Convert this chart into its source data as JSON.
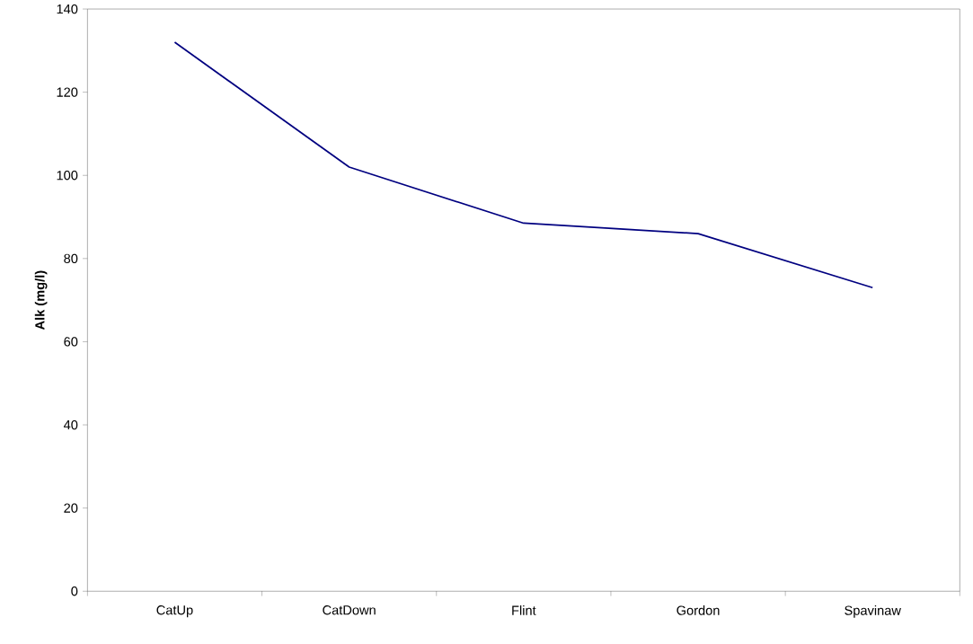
{
  "chart_data": {
    "type": "line",
    "ylabel": "Alk (mg/l)",
    "categories": [
      "CatUp",
      "CatDown",
      "Flint",
      "Gordon",
      "Spavinaw"
    ],
    "series": [
      {
        "color": "#000080",
        "values": [
          132,
          102,
          88.5,
          86,
          73
        ]
      }
    ],
    "ylim": [
      0,
      140
    ],
    "yticks": [
      0,
      20,
      40,
      60,
      80,
      100,
      120,
      140
    ],
    "grid": false,
    "marker": "none",
    "line_style": "solid"
  }
}
